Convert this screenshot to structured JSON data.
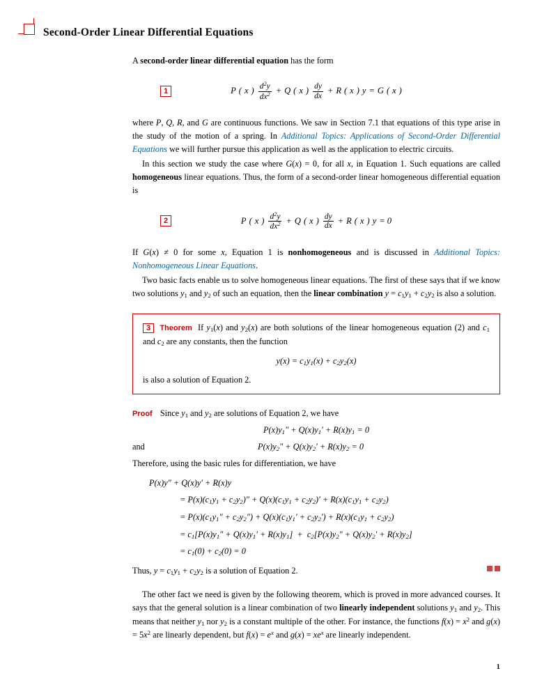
{
  "title": "Second-Order Linear Differential Equations",
  "intro": "A <b>second-order linear differential equation</b> has the form",
  "eq1": {
    "num": "1",
    "tex": "P(x) d²y/dx² + Q(x) dy/dx + R(x)y = G(x)"
  },
  "para1_a": "where <i>P</i>, <i>Q</i>, <i>R</i>, and <i>G</i> are continuous functions. We saw in Section 7.1 that equations of this type arise in the study of the motion of a spring. In ",
  "link1": "Additional Topics: Applications of Second-Order Differential Equations",
  "para1_b": " we will further pursue this application as well as the application to electric circuits.",
  "para2": "In this section we study the case where <i>G</i>(<i>x</i>) = 0, for all <i>x</i>, in Equation 1. Such equations are called <b>homogeneous</b> linear equations. Thus, the form of a second-order linear homogeneous differential equation is",
  "eq2": {
    "num": "2",
    "tex": "P(x) d²y/dx² + Q(x) dy/dx + R(x)y = 0"
  },
  "para3_a": "If <i>G</i>(<i>x</i>) ≠ 0 for some <i>x</i>, Equation 1 is <b>nonhomogeneous</b> and is discussed in ",
  "link2": "Additional Topics: Nonhomogeneous Linear Equations",
  "para3_b": ".",
  "para4": "Two basic facts enable us to solve homogeneous linear equations. The first of these says that if we know two solutions <i>y</i><span class=\"sub1\">1</span> and <i>y</i><span class=\"sub1\">2</span> of such an equation, then the <b>linear combination</b> <i>y</i> = <i>c</i><span class=\"sub1\">1</span><i>y</i><span class=\"sub1\">1</span> + <i>c</i><span class=\"sub1\">2</span><i>y</i><span class=\"sub1\">2</span> is also a solution.",
  "theorem": {
    "num": "3",
    "label": "Theorem",
    "text_a": "If <i>y</i><span class=\"sub1\">1</span>(<i>x</i>) and <i>y</i><span class=\"sub1\">2</span>(<i>x</i>) are both solutions of the linear homogeneous equation (2) and <i>c</i><span class=\"sub1\">1</span> and <i>c</i><span class=\"sub1\">2</span> are any constants, then the function",
    "eq": "y(x) = c₁y₁(x) + c₂y₂(x)",
    "text_b": "is also a solution of Equation 2."
  },
  "proof": {
    "label": "Proof",
    "line1": "Since <i>y</i><span class=\"sub1\">1</span> and <i>y</i><span class=\"sub1\">2</span> are solutions of Equation 2, we have",
    "eq_a": "P(x)y₁″ + Q(x)y₁′ + R(x)y₁ = 0",
    "and": "and",
    "eq_b": "P(x)y₂″ + Q(x)y₂′ + R(x)y₂ = 0",
    "line2": "Therefore, using the basic rules for differentiation, we have",
    "d0": "P(x)y″ + Q(x)y′ + R(x)y",
    "d1": "= P(x)(c₁y₁ + c₂y₂)″ + Q(x)(c₁y₁ + c₂y₂)′ + R(x)(c₁y₁ + c₂y₂)",
    "d2": "= P(x)(c₁y₁″ + c₂y₂″) + Q(x)(c₁y₁′ + c₂y₂′) + R(x)(c₁y₁ + c₂y₂)",
    "d3": "= c₁[P(x)y₁″ + Q(x)y₁′ + R(x)y₁] + c₂[P(x)y₂″ + Q(x)y₂′ + R(x)y₂]",
    "d4": "= c₁(0) + c₂(0) = 0",
    "concl": "Thus, <i>y</i> = <i>c</i><span class=\"sub1\">1</span><i>y</i><span class=\"sub1\">1</span> + <i>c</i><span class=\"sub1\">2</span><i>y</i><span class=\"sub1\">2</span> is a solution of Equation 2."
  },
  "para5": "The other fact we need is given by the following theorem, which is proved in more advanced courses. It says that the general solution is a linear combination of two <b>linearly independent</b> solutions <i>y</i><span class=\"sub1\">1</span> and <i>y</i><span class=\"sub1\">2</span>. This means that neither <i>y</i><span class=\"sub1\">1</span> nor <i>y</i><span class=\"sub1\">2</span> is a constant multiple of the other. For instance, the functions <i>f</i>(<i>x</i>) = <i>x</i><span class=\"sup1\">2</span> and <i>g</i>(<i>x</i>) = 5<i>x</i><span class=\"sup1\">2</span> are linearly dependent, but <i>f</i>(<i>x</i>) = <i>e</i><span class=\"sup1\"><i>x</i></span> and <i>g</i>(<i>x</i>) = <i>xe</i><span class=\"sup1\"><i>x</i></span> are linearly independent.",
  "pageNum": "1",
  "colors": {
    "accent": "#cc0000",
    "link": "#0066aa",
    "qed": "#cc4444"
  }
}
